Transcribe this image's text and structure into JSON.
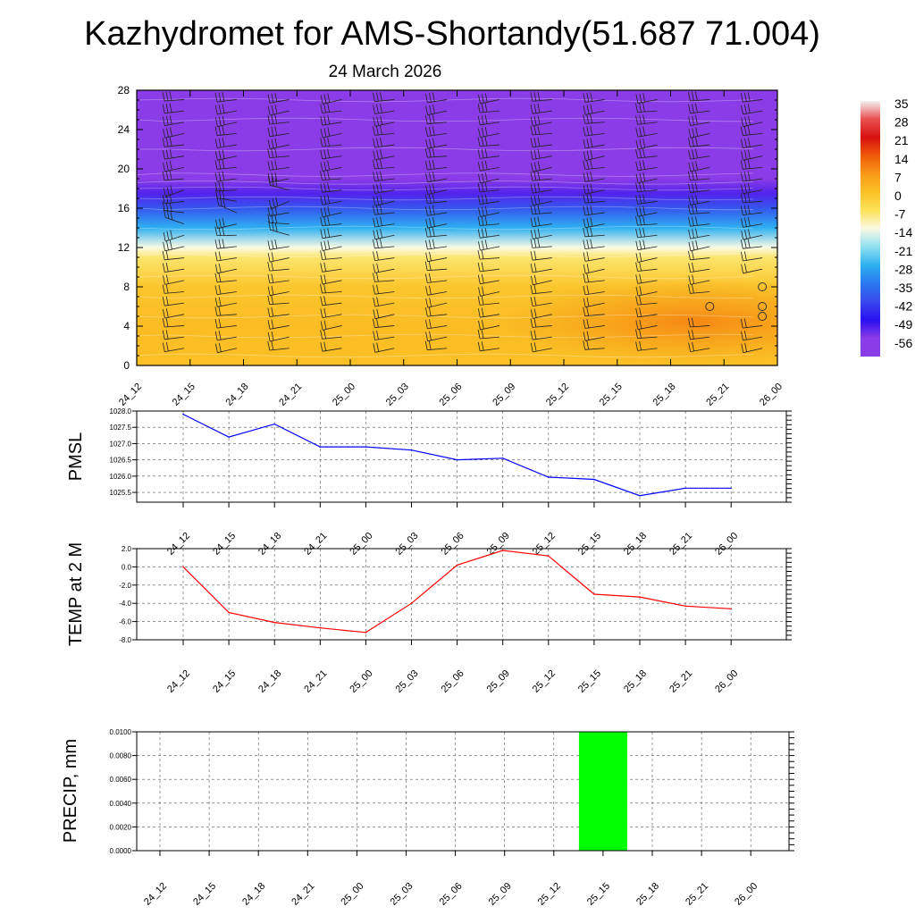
{
  "title": "Kazhydromet for AMS-Shortandy(51.687 71.004)",
  "subtitle": "24 March 2026",
  "time_labels": [
    "24_12",
    "24_15",
    "24_18",
    "24_21",
    "25_00",
    "25_03",
    "25_06",
    "25_09",
    "25_12",
    "25_15",
    "25_18",
    "25_21",
    "26_00"
  ],
  "colorbar": {
    "labels": [
      "35",
      "28",
      "21",
      "14",
      "7",
      "0",
      "-7",
      "-14",
      "-21",
      "-28",
      "-35",
      "-42",
      "-49",
      "-56"
    ],
    "stops": [
      {
        "v": 35,
        "color": "#f4f0f0"
      },
      {
        "v": 28,
        "color": "#e85050"
      },
      {
        "v": 21,
        "color": "#d81010"
      },
      {
        "v": 14,
        "color": "#f05a0a"
      },
      {
        "v": 7,
        "color": "#f89a18"
      },
      {
        "v": 0,
        "color": "#fbc126"
      },
      {
        "v": -7,
        "color": "#fde25a"
      },
      {
        "v": -14,
        "color": "#fafae6"
      },
      {
        "v": -21,
        "color": "#8ee0f0"
      },
      {
        "v": -28,
        "color": "#2eb0f0"
      },
      {
        "v": -35,
        "color": "#2a78f0"
      },
      {
        "v": -42,
        "color": "#3a48ee"
      },
      {
        "v": -49,
        "color": "#2a10f0"
      },
      {
        "v": -56,
        "color": "#8a3ce6"
      },
      {
        "v": -63,
        "color": "#8a3ce6"
      }
    ]
  },
  "chart_data": [
    {
      "type": "heatmap",
      "title": "",
      "xlabel": "",
      "ylabel": "",
      "x": [
        "24_12",
        "24_15",
        "24_18",
        "24_21",
        "25_00",
        "25_03",
        "25_06",
        "25_09",
        "25_12",
        "25_15",
        "25_18",
        "25_21",
        "26_00"
      ],
      "ylim": [
        0,
        28
      ],
      "yticks": [
        0,
        4,
        8,
        12,
        16,
        20,
        24,
        28
      ],
      "temperature_profile": [
        {
          "level": 0,
          "temp": 0
        },
        {
          "level": 4,
          "temp": 1
        },
        {
          "level": 8,
          "temp": -1
        },
        {
          "level": 11,
          "temp": -8
        },
        {
          "level": 12,
          "temp": -14
        },
        {
          "level": 14,
          "temp": -28
        },
        {
          "level": 16,
          "temp": -40
        },
        {
          "level": 17.5,
          "temp": -52
        },
        {
          "level": 19,
          "temp": -57
        },
        {
          "level": 28,
          "temp": -60
        }
      ],
      "warm_core": {
        "x_from": "25_06",
        "x_to": "26_00",
        "level_from": 1,
        "level_to": 8,
        "temp": 5
      },
      "calm_wind_markers": [
        {
          "x": "25_18",
          "level": 6
        },
        {
          "x": "25_21",
          "level": 5
        },
        {
          "x": "25_21",
          "level": 6
        },
        {
          "x": "25_21",
          "level": 8
        }
      ],
      "grid": false,
      "wind_barbs": true
    },
    {
      "type": "line",
      "ylabel": "PMSL",
      "x": [
        "24_12",
        "24_15",
        "24_18",
        "24_21",
        "25_00",
        "25_03",
        "25_06",
        "25_09",
        "25_12",
        "25_15",
        "25_18",
        "25_21",
        "26_00"
      ],
      "series": [
        {
          "values": [
            1027.9,
            1027.2,
            1027.6,
            1026.9,
            1026.9,
            1026.8,
            1026.5,
            1026.55,
            1025.97,
            1025.9,
            1025.4,
            1025.63,
            1025.63
          ],
          "color": "#0000ff"
        }
      ],
      "ylim": [
        1025.2,
        1028.0
      ],
      "yticks": [
        1025.5,
        1026.0,
        1026.5,
        1027.0,
        1027.5,
        1028.0
      ],
      "ytick_labels": [
        "1025.5",
        "1026.0",
        "1026.5",
        "1027.0",
        "1027.5",
        "1028.0"
      ],
      "grid": true
    },
    {
      "type": "line",
      "ylabel": "TEMP at 2 M",
      "x": [
        "24_12",
        "24_15",
        "24_18",
        "24_21",
        "25_00",
        "25_03",
        "25_06",
        "25_09",
        "25_12",
        "25_15",
        "25_18",
        "25_21",
        "26_00"
      ],
      "series": [
        {
          "values": [
            0.0,
            -5.0,
            -6.1,
            -6.7,
            -7.2,
            -4.0,
            0.2,
            1.8,
            1.2,
            -3.0,
            -3.3,
            -4.3,
            -4.6
          ],
          "color": "#ff0000"
        }
      ],
      "ylim": [
        -8.0,
        2.0
      ],
      "yticks": [
        -8.0,
        -6.0,
        -4.0,
        -2.0,
        0.0,
        2.0
      ],
      "ytick_labels": [
        "-8.0",
        "-6.0",
        "-4.0",
        "-2.0",
        "0.0",
        "2.0"
      ],
      "grid": true
    },
    {
      "type": "bar",
      "ylabel": "PRECIP, mm",
      "categories": [
        "24_12",
        "24_15",
        "24_18",
        "24_21",
        "25_00",
        "25_03",
        "25_06",
        "25_09",
        "25_12",
        "25_15",
        "25_18",
        "25_21",
        "26_00"
      ],
      "values": [
        0,
        0,
        0,
        0,
        0,
        0,
        0,
        0,
        0,
        0.01,
        0,
        0,
        0
      ],
      "color": "#00ff00",
      "ylim": [
        0,
        0.01
      ],
      "yticks": [
        0,
        0.002,
        0.004,
        0.006,
        0.008,
        0.01
      ],
      "ytick_labels": [
        "0.0000",
        "0.0020",
        "0.0040",
        "0.0060",
        "0.0080",
        "0.0100"
      ],
      "grid": true
    }
  ]
}
